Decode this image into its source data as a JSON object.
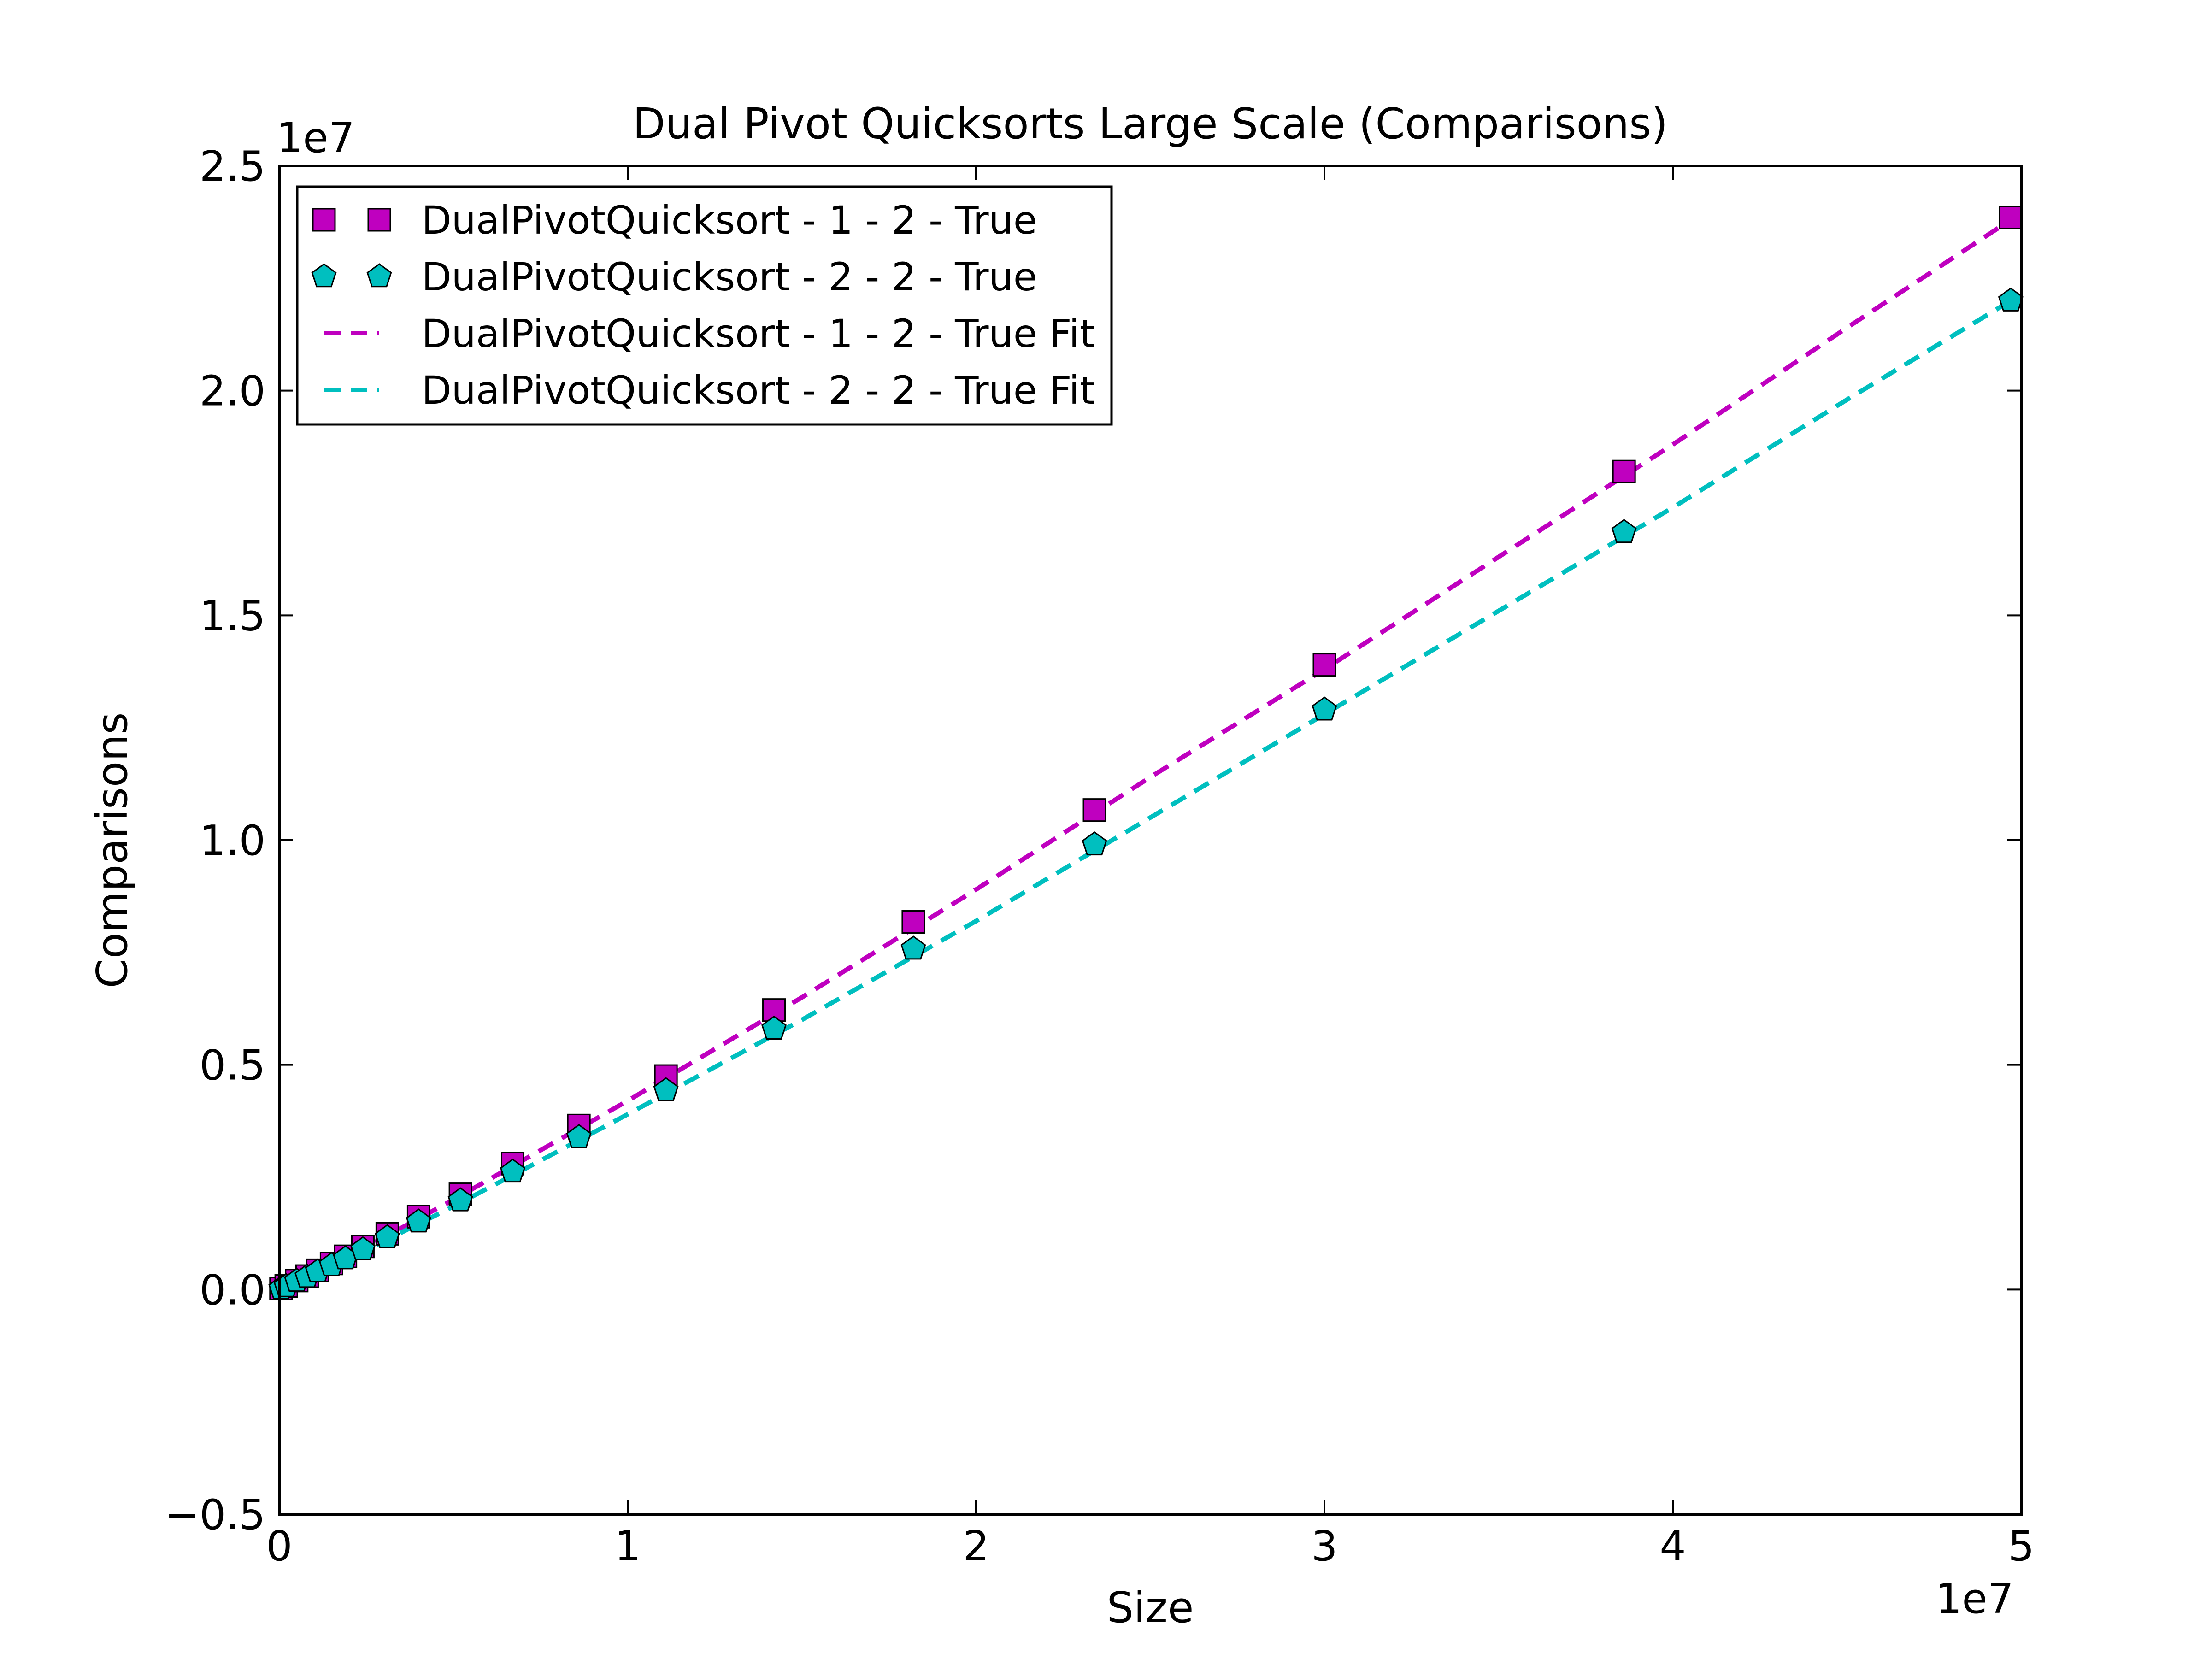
{
  "chart_data": {
    "type": "scatter",
    "title": "Dual Pivot Quicksorts Large Scale (Comparisons)",
    "xlabel": "Size",
    "ylabel": "Comparisons",
    "x_offset_text": "1e7",
    "y_offset_text": "1e7",
    "xlim": [
      0,
      5
    ],
    "ylim": [
      -0.5,
      2.5
    ],
    "x_scale_multiplier": 10000000,
    "y_scale_multiplier": 10000000,
    "x_ticks": [
      0,
      1,
      2,
      3,
      4,
      5
    ],
    "x_tick_labels": [
      "0",
      "1",
      "2",
      "3",
      "4",
      "5"
    ],
    "y_ticks": [
      -0.5,
      0.0,
      0.5,
      1.0,
      1.5,
      2.0,
      2.5
    ],
    "y_tick_labels": [
      "−0.5",
      "0.0",
      "0.5",
      "1.0",
      "1.5",
      "2.0",
      "2.5"
    ],
    "grid": false,
    "legend_position": "top-left",
    "x": [
      0.005,
      0.02,
      0.05,
      0.08,
      0.11,
      0.15,
      0.19,
      0.24,
      0.31,
      0.4,
      0.52,
      0.67,
      0.86,
      1.11,
      1.42,
      1.82,
      2.34,
      3.0,
      3.86,
      4.97
    ],
    "series": [
      {
        "name": "DualPivotQuicksort - 1 - 2 - True",
        "marker": "square",
        "color": "#bf00bf",
        "values": [
          0.002,
          0.008,
          0.02,
          0.03,
          0.043,
          0.058,
          0.074,
          0.096,
          0.124,
          0.162,
          0.212,
          0.28,
          0.365,
          0.475,
          0.622,
          0.818,
          1.067,
          1.39,
          1.82,
          2.385
        ]
      },
      {
        "name": "DualPivotQuicksort - 2 - 2 - True",
        "marker": "pentagon",
        "color": "#00bfbf",
        "values": [
          0.002,
          0.007,
          0.019,
          0.028,
          0.04,
          0.054,
          0.069,
          0.089,
          0.116,
          0.151,
          0.198,
          0.262,
          0.339,
          0.443,
          0.58,
          0.758,
          0.99,
          1.29,
          1.685,
          2.2
        ]
      }
    ],
    "fits": [
      {
        "name": "DualPivotQuicksort - 1 - 2 - True Fit",
        "color": "#bf00bf",
        "style": "dashed",
        "x": [
          0.0,
          0.25,
          0.5,
          0.75,
          1.0,
          1.5,
          2.0,
          2.5,
          3.0,
          3.5,
          4.0,
          4.5,
          4.97
        ],
        "values": [
          0.0,
          0.095,
          0.2,
          0.31,
          0.42,
          0.65,
          0.89,
          1.14,
          1.38,
          1.63,
          1.88,
          2.14,
          2.38
        ]
      },
      {
        "name": "DualPivotQuicksort - 2 - 2 - True Fit",
        "color": "#00bfbf",
        "style": "dashed",
        "x": [
          0.0,
          0.25,
          0.5,
          0.75,
          1.0,
          1.5,
          2.0,
          2.5,
          3.0,
          3.5,
          4.0,
          4.5,
          4.97
        ],
        "values": [
          0.0,
          0.088,
          0.185,
          0.287,
          0.39,
          0.6,
          0.82,
          1.05,
          1.28,
          1.51,
          1.74,
          1.98,
          2.2
        ]
      }
    ]
  }
}
